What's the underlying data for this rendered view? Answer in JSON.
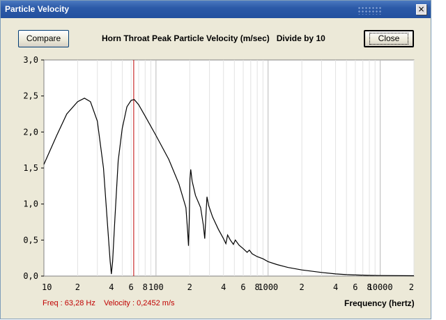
{
  "window": {
    "title": "Particle Velocity",
    "close_glyph": "×",
    "close_icon": "close-icon"
  },
  "toolbar": {
    "compare_label": "Compare",
    "close_label": "Close"
  },
  "chart_heading": "Horn Throat Peak Particle Velocity (m/sec)   Divide by 10",
  "status": {
    "frequency": "Freq : 63,28 Hz",
    "velocity": "Velocity : 0,2452 m/s"
  },
  "colors": {
    "curve": "#000000",
    "cursor": "#c00000",
    "status_text": "#c00000",
    "grid": "#c8c8c8"
  },
  "chart_data": {
    "type": "line",
    "title": "Horn Throat Peak Particle Velocity (m/sec)   Divide by 10",
    "xlabel": "Frequency (hertz)",
    "ylabel": "",
    "x_scale": "log",
    "xlim": [
      10,
      20000
    ],
    "ylim": [
      0,
      3.0
    ],
    "grid": true,
    "y_ticks": [
      "0,0",
      "0,5",
      "1,0",
      "1,5",
      "2,0",
      "2,5",
      "3,0"
    ],
    "x_ticks": [
      {
        "value": 10,
        "label": "10"
      },
      {
        "value": 20,
        "label": "2"
      },
      {
        "value": 40,
        "label": "4"
      },
      {
        "value": 60,
        "label": "6"
      },
      {
        "value": 80,
        "label": "8"
      },
      {
        "value": 100,
        "label": "100"
      },
      {
        "value": 200,
        "label": "2"
      },
      {
        "value": 400,
        "label": "4"
      },
      {
        "value": 600,
        "label": "6"
      },
      {
        "value": 800,
        "label": "8"
      },
      {
        "value": 1000,
        "label": "1000"
      },
      {
        "value": 2000,
        "label": "2"
      },
      {
        "value": 4000,
        "label": "4"
      },
      {
        "value": 6000,
        "label": "6"
      },
      {
        "value": 8000,
        "label": "8"
      },
      {
        "value": 10000,
        "label": "10000"
      },
      {
        "value": 20000,
        "label": "2"
      }
    ],
    "cursor_x": 63.28,
    "series": [
      {
        "points": [
          [
            10,
            1.55
          ],
          [
            13,
            1.95
          ],
          [
            16,
            2.25
          ],
          [
            20,
            2.42
          ],
          [
            23,
            2.47
          ],
          [
            26,
            2.42
          ],
          [
            30,
            2.15
          ],
          [
            34,
            1.5
          ],
          [
            37,
            0.7
          ],
          [
            39,
            0.2
          ],
          [
            40,
            0.03
          ],
          [
            41,
            0.2
          ],
          [
            43,
            0.8
          ],
          [
            46,
            1.6
          ],
          [
            50,
            2.05
          ],
          [
            55,
            2.35
          ],
          [
            60,
            2.44
          ],
          [
            64,
            2.45
          ],
          [
            70,
            2.38
          ],
          [
            80,
            2.22
          ],
          [
            100,
            1.95
          ],
          [
            130,
            1.62
          ],
          [
            160,
            1.28
          ],
          [
            185,
            0.95
          ],
          [
            192,
            0.6
          ],
          [
            195,
            0.42
          ],
          [
            198,
            0.8
          ],
          [
            201,
            1.35
          ],
          [
            204,
            1.48
          ],
          [
            210,
            1.32
          ],
          [
            225,
            1.12
          ],
          [
            250,
            0.95
          ],
          [
            265,
            0.7
          ],
          [
            272,
            0.52
          ],
          [
            280,
            0.9
          ],
          [
            285,
            1.1
          ],
          [
            295,
            0.98
          ],
          [
            320,
            0.82
          ],
          [
            360,
            0.65
          ],
          [
            400,
            0.52
          ],
          [
            420,
            0.45
          ],
          [
            435,
            0.57
          ],
          [
            460,
            0.5
          ],
          [
            490,
            0.44
          ],
          [
            510,
            0.5
          ],
          [
            550,
            0.43
          ],
          [
            600,
            0.38
          ],
          [
            650,
            0.33
          ],
          [
            680,
            0.36
          ],
          [
            720,
            0.31
          ],
          [
            800,
            0.27
          ],
          [
            900,
            0.24
          ],
          [
            1000,
            0.2
          ],
          [
            1200,
            0.16
          ],
          [
            1500,
            0.12
          ],
          [
            2000,
            0.085
          ],
          [
            3000,
            0.05
          ],
          [
            4000,
            0.03
          ],
          [
            5000,
            0.02
          ],
          [
            6000,
            0.015
          ],
          [
            8000,
            0.01
          ],
          [
            10000,
            0.008
          ],
          [
            20000,
            0.005
          ]
        ]
      }
    ]
  }
}
